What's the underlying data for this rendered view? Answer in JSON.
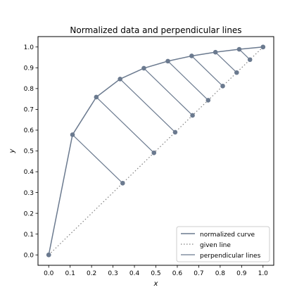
{
  "chart_data": {
    "type": "line",
    "title": "Normalized data and perpendicular lines",
    "xlabel": "x",
    "ylabel": "y",
    "xlim": [
      -0.05,
      1.05
    ],
    "ylim": [
      -0.05,
      1.05
    ],
    "xticks": [
      "0.0",
      "0.1",
      "0.2",
      "0.3",
      "0.4",
      "0.5",
      "0.6",
      "0.7",
      "0.8",
      "0.9",
      "1.0"
    ],
    "yticks": [
      "0.0",
      "0.1",
      "0.2",
      "0.3",
      "0.4",
      "0.5",
      "0.6",
      "0.7",
      "0.8",
      "0.9",
      "1.0"
    ],
    "grid": false,
    "legend_position": "lower-right",
    "colors": {
      "curve": "#6b7a8f",
      "points": "#6b7a8f",
      "given_line": "#808080",
      "perpendicular": "#6b7a8f"
    },
    "series": [
      {
        "name": "normalized curve",
        "style": "solid",
        "x": [
          0.0,
          0.111,
          0.222,
          0.333,
          0.444,
          0.556,
          0.667,
          0.778,
          0.889,
          1.0
        ],
        "y": [
          0.0,
          0.578,
          0.759,
          0.846,
          0.898,
          0.932,
          0.957,
          0.975,
          0.989,
          1.0
        ]
      },
      {
        "name": "given line",
        "style": "dotted",
        "x": [
          0.0,
          1.0
        ],
        "y": [
          0.0,
          1.0
        ]
      },
      {
        "name": "perpendicular lines",
        "style": "solid",
        "feet": [
          0.0,
          0.345,
          0.491,
          0.59,
          0.671,
          0.744,
          0.812,
          0.877,
          0.939,
          1.0
        ]
      }
    ]
  }
}
